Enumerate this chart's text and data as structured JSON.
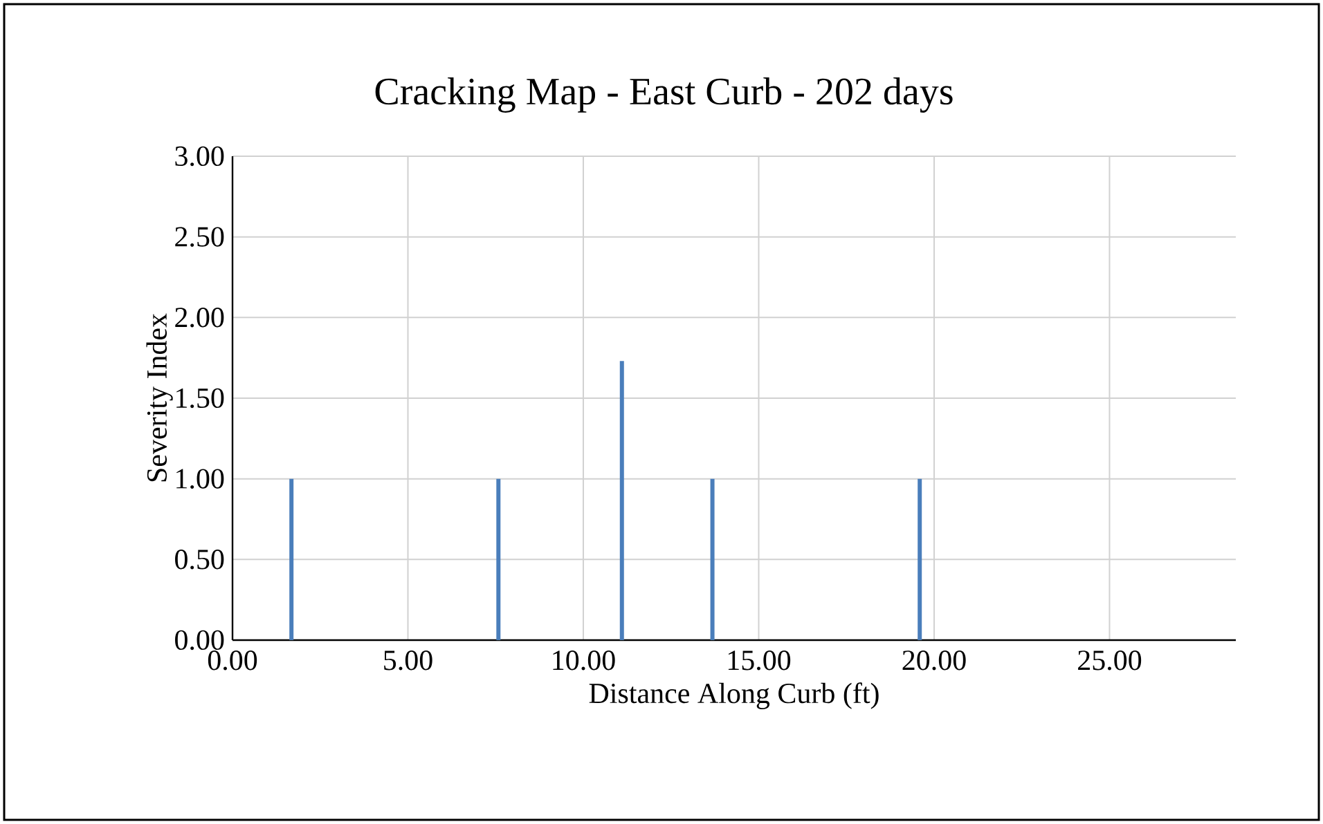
{
  "chart_data": {
    "type": "bar",
    "title": "Cracking Map - East Curb - 202 days",
    "xlabel": "Distance Along Curb (ft)",
    "ylabel": "Severity Index",
    "x": [
      1.68,
      7.58,
      11.1,
      13.68,
      19.59
    ],
    "values": [
      1.0,
      1.0,
      1.73,
      1.0,
      1.0
    ],
    "color": "#4a7ebb",
    "xlim": [
      0,
      28.6
    ],
    "ylim": [
      0,
      3
    ],
    "xticks": [
      {
        "value": 0,
        "label": "0.00"
      },
      {
        "value": 5,
        "label": "5.00"
      },
      {
        "value": 10,
        "label": "10.00"
      },
      {
        "value": 15,
        "label": "15.00"
      },
      {
        "value": 20,
        "label": "20.00"
      },
      {
        "value": 25,
        "label": "25.00"
      }
    ],
    "yticks": [
      {
        "value": 0,
        "label": "0.00"
      },
      {
        "value": 0.5,
        "label": "0.50"
      },
      {
        "value": 1,
        "label": "1.00"
      },
      {
        "value": 1.5,
        "label": "1.50"
      },
      {
        "value": 2,
        "label": "2.00"
      },
      {
        "value": 2.5,
        "label": "2.50"
      },
      {
        "value": 3,
        "label": "3.00"
      }
    ],
    "grid": true
  }
}
